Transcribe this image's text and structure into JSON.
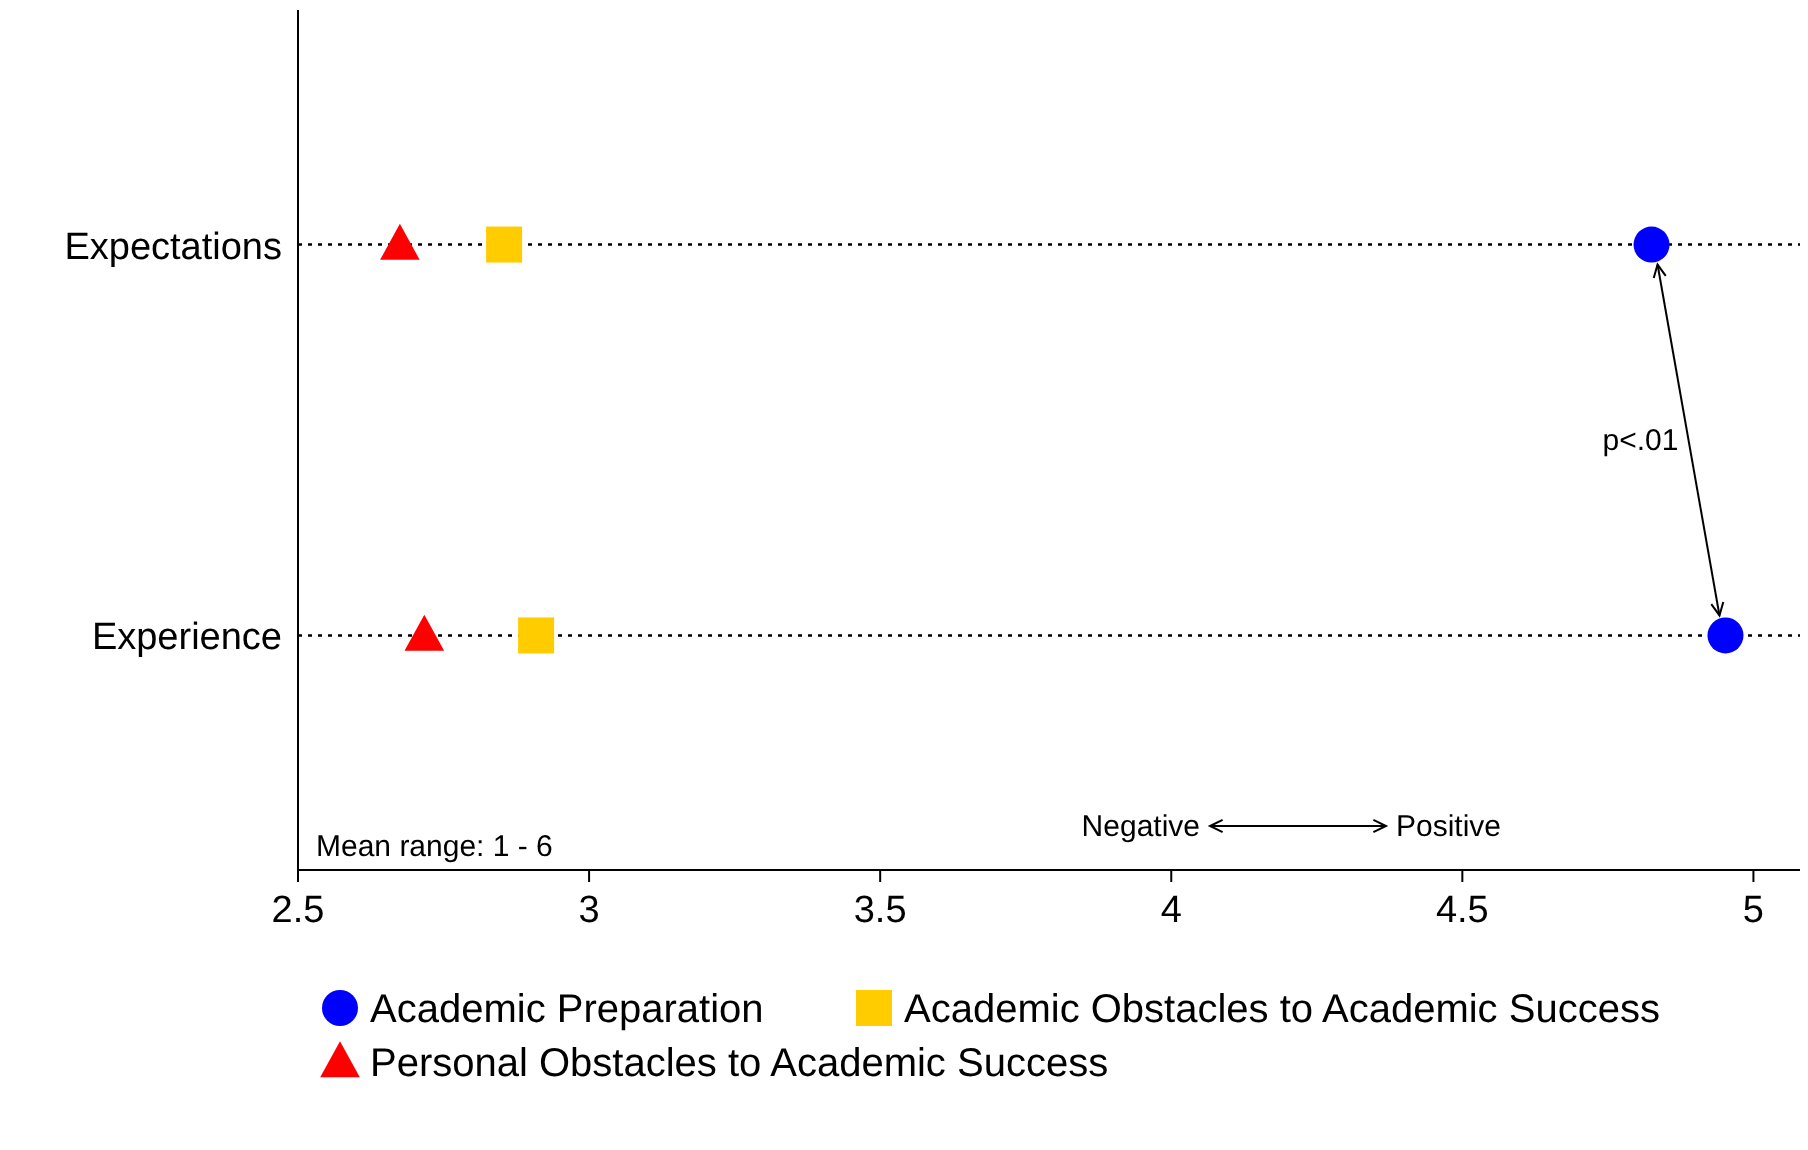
{
  "chart_data": {
    "type": "scatter",
    "orientation": "horizontal",
    "categories": [
      "Expectations",
      "Experience"
    ],
    "series": [
      {
        "name": "Academic Preparation",
        "color": "#0000ff",
        "marker": "circle",
        "values": [
          4.825,
          4.952
        ]
      },
      {
        "name": "Academic Obstacles to Academic Success",
        "color": "#ffcc00",
        "marker": "square",
        "values": [
          2.854,
          2.909
        ]
      },
      {
        "name": "Personal Obstacles to Academic Success",
        "color": "#ff0000",
        "marker": "triangle",
        "values": [
          2.675,
          2.717
        ]
      }
    ],
    "xlim": [
      2.5,
      5.08
    ],
    "xticks": [
      2.5,
      3,
      3.5,
      4,
      4.5,
      5
    ],
    "grid": "y",
    "line_style": "dotted",
    "legend": "bottom",
    "annotations": [
      "p<.01",
      "Mean range: 1 - 6",
      "Negative",
      "Positive"
    ]
  }
}
